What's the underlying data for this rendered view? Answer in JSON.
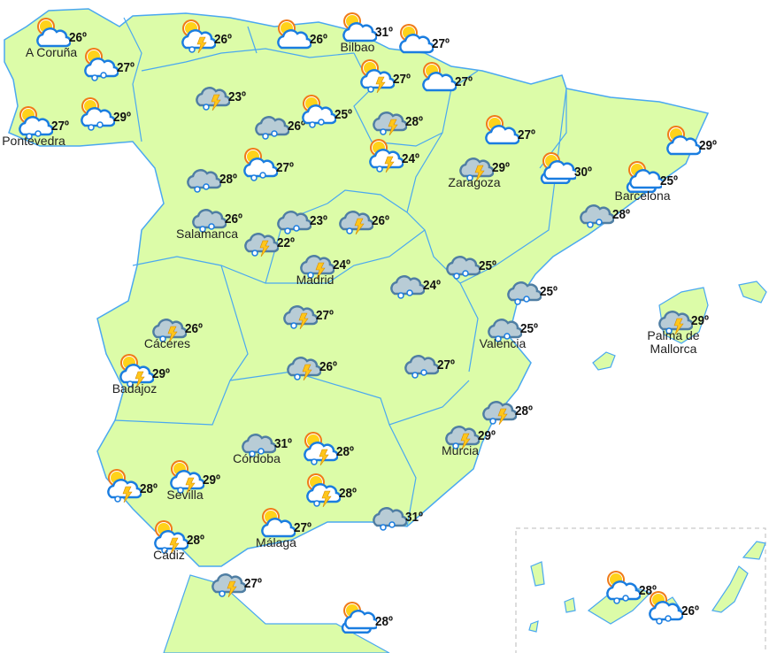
{
  "colors": {
    "land": "#dcfca8",
    "border": "#4aa8f0",
    "cloud_outline": "#1a7de0",
    "rain_cloud": "#b8ccd6",
    "rain_cloud_outline": "#4f7ea3",
    "sun": "#ffd21a",
    "sun_rays": "#f07a18",
    "bolt": "#ffc61a"
  },
  "unit": "º",
  "stations": [
    {
      "icon": "sun-cloud",
      "temp": "26º",
      "city": "A Coruña"
    },
    {
      "icon": "sun-cloud-rain",
      "temp": "27º"
    },
    {
      "icon": "sun-cloud-rain",
      "temp": "27º",
      "city": "Pontevedra"
    },
    {
      "icon": "sun-cloud-rain",
      "temp": "29º"
    },
    {
      "icon": "sun-cloud-storm",
      "temp": "26º"
    },
    {
      "icon": "sun-cloud",
      "temp": "26º"
    },
    {
      "icon": "sun-cloud",
      "temp": "31º",
      "city": "Bilbao"
    },
    {
      "icon": "sun-cloud",
      "temp": "27º"
    },
    {
      "icon": "sun-cloud-storm",
      "temp": "27º"
    },
    {
      "icon": "sun-cloud",
      "temp": "27º"
    },
    {
      "icon": "cloud-storm",
      "temp": "23º"
    },
    {
      "icon": "cloud-rain",
      "temp": "26º"
    },
    {
      "icon": "sun-cloud-rain",
      "temp": "25º"
    },
    {
      "icon": "cloud-storm",
      "temp": "28º"
    },
    {
      "icon": "sun-cloud-storm",
      "temp": "24º"
    },
    {
      "icon": "cloud-rain",
      "temp": "28º"
    },
    {
      "icon": "sun-cloud-rain",
      "temp": "27º"
    },
    {
      "icon": "sun-cloud",
      "temp": "27º"
    },
    {
      "icon": "cloud-storm",
      "temp": "29º",
      "city": "Zaragoza"
    },
    {
      "icon": "sun-clouds",
      "temp": "30º"
    },
    {
      "icon": "sun-cloud",
      "temp": "29º"
    },
    {
      "icon": "sun-clouds",
      "temp": "25º",
      "city": "Barcelona"
    },
    {
      "icon": "cloud-rain",
      "temp": "28º"
    },
    {
      "icon": "cloud-rain",
      "temp": "26º",
      "city": "Salamanca"
    },
    {
      "icon": "cloud-storm",
      "temp": "22º"
    },
    {
      "icon": "cloud-rain",
      "temp": "23º"
    },
    {
      "icon": "cloud-storm",
      "temp": "26º"
    },
    {
      "icon": "cloud-storm",
      "temp": "24º",
      "city": "Madrid"
    },
    {
      "icon": "cloud-rain",
      "temp": "24º"
    },
    {
      "icon": "cloud-rain",
      "temp": "25º"
    },
    {
      "icon": "cloud-rain",
      "temp": "25º"
    },
    {
      "icon": "cloud-storm",
      "temp": "26º",
      "city": "Cáceres"
    },
    {
      "icon": "sun-cloud-storm",
      "temp": "29º",
      "city": "Badajoz"
    },
    {
      "icon": "cloud-storm",
      "temp": "27º"
    },
    {
      "icon": "cloud-rain",
      "temp": "25º",
      "city": "Valencia"
    },
    {
      "icon": "cloud-storm",
      "temp": "29º",
      "city": "Palma de Mallorca"
    },
    {
      "icon": "cloud-storm",
      "temp": "26º"
    },
    {
      "icon": "cloud-rain",
      "temp": "27º"
    },
    {
      "icon": "cloud-storm",
      "temp": "28º"
    },
    {
      "icon": "cloud-storm",
      "temp": "29º",
      "city": "Murcia"
    },
    {
      "icon": "cloud-rain",
      "temp": "31º",
      "city": "Córdoba"
    },
    {
      "icon": "sun-cloud-storm",
      "temp": "28º"
    },
    {
      "icon": "sun-cloud-storm",
      "temp": "29º",
      "city": "Sevilla"
    },
    {
      "icon": "sun-cloud-storm",
      "temp": "28º"
    },
    {
      "icon": "sun-cloud-storm",
      "temp": "28º"
    },
    {
      "icon": "cloud-rain",
      "temp": "31º"
    },
    {
      "icon": "sun-cloud",
      "temp": "27º",
      "city": "Málaga"
    },
    {
      "icon": "sun-cloud-storm",
      "temp": "28º",
      "city": "Cádiz"
    },
    {
      "icon": "cloud-storm",
      "temp": "27º"
    },
    {
      "icon": "sun-clouds",
      "temp": "28º"
    },
    {
      "icon": "sun-cloud-rain",
      "temp": "28º"
    },
    {
      "icon": "sun-cloud-rain",
      "temp": "26º"
    }
  ]
}
